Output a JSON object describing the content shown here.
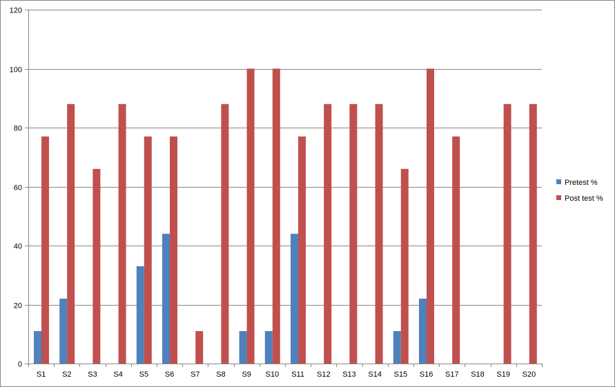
{
  "chart_data": {
    "type": "bar",
    "categories": [
      "S1",
      "S2",
      "S3",
      "S4",
      "S5",
      "S6",
      "S7",
      "S8",
      "S9",
      "S10",
      "S11",
      "S12",
      "S13",
      "S14",
      "S15",
      "S16",
      "S17",
      "S18",
      "S19",
      "S20"
    ],
    "series": [
      {
        "name": "Pretest %",
        "color": "#4F81BD",
        "values": [
          11,
          22,
          0,
          0,
          33,
          44,
          0,
          0,
          11,
          11,
          44,
          0,
          0,
          0,
          11,
          22,
          0,
          0,
          0,
          0
        ]
      },
      {
        "name": "Post test %",
        "color": "#C0504D",
        "values": [
          77,
          88,
          66,
          88,
          77,
          77,
          11,
          88,
          100,
          100,
          77,
          88,
          88,
          88,
          66,
          100,
          77,
          0,
          88,
          88
        ]
      }
    ],
    "ylim": [
      0,
      120
    ],
    "yticks": [
      0,
      20,
      40,
      60,
      80,
      100,
      120
    ],
    "grid": true,
    "legend_position": "right"
  }
}
